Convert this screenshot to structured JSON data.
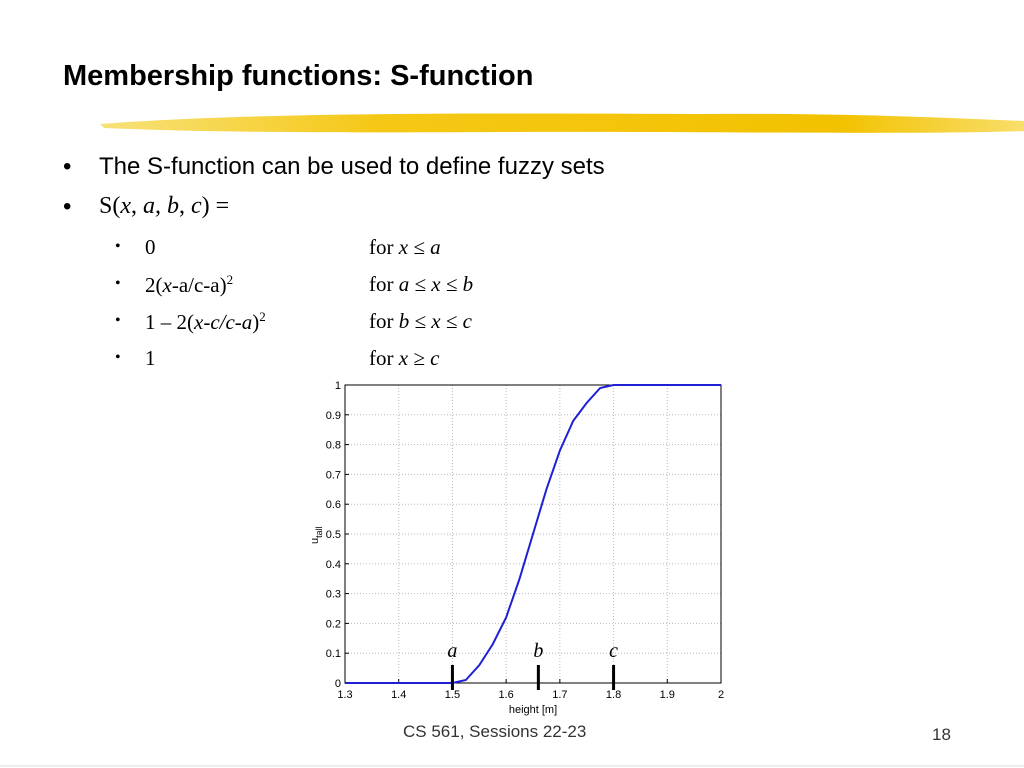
{
  "title": "Membership functions: S-function",
  "bullets": [
    [
      {
        "text": "The S-function can be used to define fuzzy sets"
      }
    ],
    [
      {
        "text": "S("
      },
      {
        "text": "x",
        "italic": true
      },
      {
        "text": ", "
      },
      {
        "text": "a, b",
        "italic": true
      },
      {
        "text": ", "
      },
      {
        "text": "c",
        "italic": true
      },
      {
        "text": ") ="
      }
    ]
  ],
  "sub_bullets": [
    {
      "left": [
        {
          "text": "0"
        }
      ],
      "right": [
        {
          "text": "for "
        },
        {
          "text": "x ≤ a",
          "italic": true
        }
      ]
    },
    {
      "left": [
        {
          "text": "2("
        },
        {
          "text": "x",
          "italic": true
        },
        {
          "text": "-a/c-a)"
        },
        {
          "text": "2",
          "sup": true
        }
      ],
      "right": [
        {
          "text": "for "
        },
        {
          "text": "a ≤ x ≤ b",
          "italic": true
        }
      ]
    },
    {
      "left": [
        {
          "text": "1 – 2("
        },
        {
          "text": "x-c/c-a",
          "italic": true
        },
        {
          "text": ")"
        },
        {
          "text": "2",
          "sup": true
        }
      ],
      "right": [
        {
          "text": "for "
        },
        {
          "text": "b ≤ x ≤ c",
          "italic": true
        }
      ]
    },
    {
      "left": [
        {
          "text": "1"
        }
      ],
      "right": [
        {
          "text": "for "
        },
        {
          "text": "x ≥ c",
          "italic": true
        }
      ]
    }
  ],
  "chart_data": {
    "type": "line",
    "x": [
      1.3,
      1.5,
      1.525,
      1.55,
      1.575,
      1.6,
      1.625,
      1.65,
      1.675,
      1.7,
      1.725,
      1.75,
      1.775,
      1.8,
      2.0
    ],
    "values": [
      0,
      0,
      0.01,
      0.06,
      0.13,
      0.22,
      0.35,
      0.5,
      0.65,
      0.78,
      0.88,
      0.94,
      0.99,
      1,
      1
    ],
    "color": "#1f1fd6",
    "xlim": [
      1.3,
      2
    ],
    "xticks": [
      1.3,
      1.4,
      1.5,
      1.6,
      1.7,
      1.8,
      1.9,
      2
    ],
    "ylim": [
      0,
      1
    ],
    "yticks": [
      0,
      0.1,
      0.2,
      0.3,
      0.4,
      0.5,
      0.6,
      0.7,
      0.8,
      0.9,
      1
    ],
    "grid": true,
    "xlabel": "height [m]",
    "ylabel": "u",
    "ylabel_subscript": "tall",
    "annotations": [
      {
        "text": "a",
        "x": 1.5
      },
      {
        "text": "b",
        "x": 1.66
      },
      {
        "text": "c",
        "x": 1.8
      }
    ]
  },
  "footer": {
    "text": "CS 561,  Sessions 22-23",
    "page": "18"
  }
}
